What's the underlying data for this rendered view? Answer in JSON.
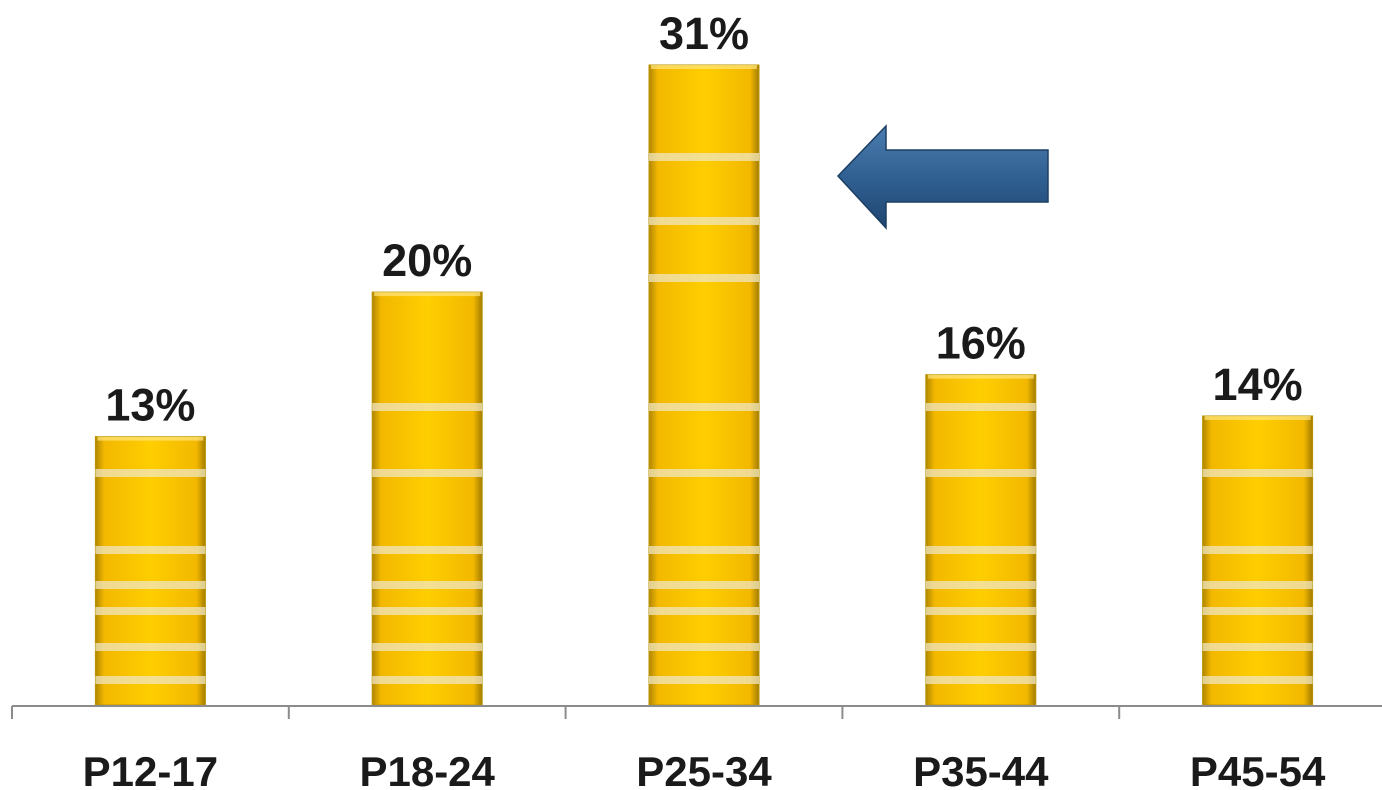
{
  "chart_data": {
    "type": "bar",
    "categories": [
      "P12-17",
      "P18-24",
      "P25-34",
      "P35-44",
      "P45-54"
    ],
    "values": [
      13,
      20,
      31,
      16,
      14
    ],
    "data_labels": [
      "13%",
      "20%",
      "31%",
      "16%",
      "14%"
    ],
    "title": "",
    "xlabel": "",
    "ylabel": "",
    "ylim": [
      0,
      31
    ],
    "grid": false,
    "legend": "none",
    "highlight_category": "P25-34",
    "annotation": "arrow pointing left at P25-34 bar"
  },
  "colors": {
    "bar": "#FFCC00",
    "bar_edge": "#B89300",
    "bar_stripe": "#EFE6C2",
    "arrow": "#2E5D8F",
    "axis": "#8C8C8C",
    "text": "#1A1A1A"
  }
}
